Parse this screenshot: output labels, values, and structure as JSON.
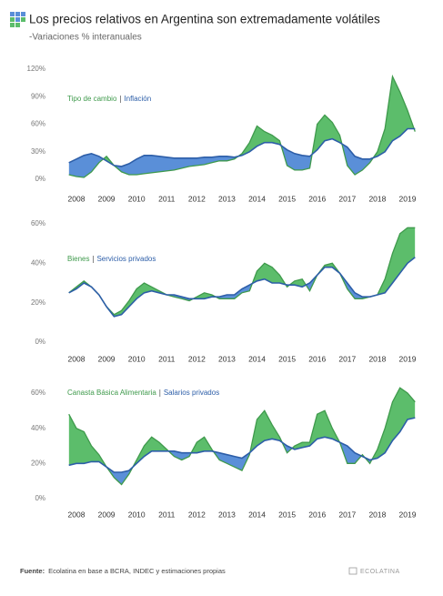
{
  "title": "Los precios relativos en Argentina son extremadamente volátiles",
  "subtitle": "-Variaciones % interanuales",
  "source_label": "Fuente:",
  "source_text": "Ecolatina en base a BCRA, INDEC y estimaciones propias",
  "logo": "ECOLATINA",
  "chart_data": [
    {
      "type": "line",
      "fill_between": true,
      "grid": false,
      "categories": [
        null,
        "2008",
        null,
        null,
        null,
        "2009",
        null,
        null,
        null,
        "2010",
        null,
        null,
        null,
        "2011",
        null,
        null,
        null,
        "2012",
        null,
        null,
        null,
        "2013",
        null,
        null,
        null,
        "2014",
        null,
        null,
        null,
        "2015",
        null,
        null,
        null,
        "2016",
        null,
        null,
        null,
        "2017",
        null,
        null,
        null,
        "2018",
        null,
        null,
        null,
        "2019",
        null
      ],
      "ylim": [
        0,
        120
      ],
      "yticks": [
        {
          "value": 0,
          "label": "0%"
        },
        {
          "value": 30,
          "label": "30%"
        },
        {
          "value": 60,
          "label": "60%"
        },
        {
          "value": 90,
          "label": "90%"
        },
        {
          "value": 120,
          "label": "120%"
        }
      ],
      "series": [
        {
          "name": "Tipo de cambio",
          "color": "#5cbd6b",
          "values": [
            5,
            3,
            2,
            8,
            18,
            25,
            15,
            8,
            5,
            5,
            6,
            7,
            8,
            9,
            10,
            12,
            14,
            15,
            16,
            18,
            20,
            20,
            22,
            28,
            40,
            58,
            52,
            48,
            42,
            15,
            10,
            10,
            12,
            60,
            70,
            62,
            48,
            15,
            5,
            10,
            18,
            30,
            55,
            112,
            95,
            75,
            52
          ]
        },
        {
          "name": "Inflación",
          "color": "#5a8fd8",
          "values": [
            18,
            22,
            26,
            28,
            25,
            20,
            15,
            14,
            17,
            22,
            26,
            26,
            25,
            24,
            23,
            23,
            23,
            23,
            24,
            24,
            25,
            25,
            24,
            26,
            30,
            36,
            40,
            40,
            38,
            32,
            28,
            26,
            25,
            32,
            42,
            44,
            40,
            35,
            25,
            22,
            22,
            25,
            30,
            42,
            47,
            55,
            55
          ]
        }
      ]
    },
    {
      "type": "line",
      "fill_between": true,
      "grid": false,
      "categories": [
        null,
        "2008",
        null,
        null,
        null,
        "2009",
        null,
        null,
        null,
        "2010",
        null,
        null,
        null,
        "2011",
        null,
        null,
        null,
        "2012",
        null,
        null,
        null,
        "2013",
        null,
        null,
        null,
        "2014",
        null,
        null,
        null,
        "2015",
        null,
        null,
        null,
        "2016",
        null,
        null,
        null,
        "2017",
        null,
        null,
        null,
        "2018",
        null,
        null,
        null,
        "2019",
        null
      ],
      "ylim": [
        0,
        60
      ],
      "yticks": [
        {
          "value": 0,
          "label": "0%"
        },
        {
          "value": 20,
          "label": "20%"
        },
        {
          "value": 40,
          "label": "40%"
        },
        {
          "value": 60,
          "label": "60%"
        }
      ],
      "series": [
        {
          "name": "Bienes",
          "color": "#5cbd6b",
          "values": [
            25,
            28,
            31,
            28,
            24,
            18,
            14,
            16,
            21,
            27,
            30,
            28,
            26,
            24,
            23,
            22,
            21,
            23,
            25,
            24,
            22,
            22,
            22,
            25,
            26,
            36,
            40,
            38,
            34,
            28,
            31,
            32,
            26,
            34,
            39,
            40,
            35,
            27,
            22,
            22,
            23,
            24,
            32,
            45,
            55,
            58,
            58
          ]
        },
        {
          "name": "Servicios privados",
          "color": "#5a8fd8",
          "values": [
            25,
            27,
            30,
            28,
            24,
            18,
            13,
            14,
            18,
            22,
            25,
            26,
            25,
            24,
            24,
            23,
            22,
            22,
            22,
            23,
            23,
            24,
            24,
            27,
            29,
            31,
            32,
            30,
            30,
            29,
            29,
            28,
            30,
            34,
            38,
            38,
            35,
            30,
            25,
            23,
            23,
            24,
            25,
            30,
            35,
            40,
            43
          ]
        }
      ]
    },
    {
      "type": "line",
      "fill_between": true,
      "grid": false,
      "categories": [
        null,
        "2008",
        null,
        null,
        null,
        "2009",
        null,
        null,
        null,
        "2010",
        null,
        null,
        null,
        "2011",
        null,
        null,
        null,
        "2012",
        null,
        null,
        null,
        "2013",
        null,
        null,
        null,
        "2014",
        null,
        null,
        null,
        "2015",
        null,
        null,
        null,
        "2016",
        null,
        null,
        null,
        "2017",
        null,
        null,
        null,
        "2018",
        null,
        null,
        null,
        "2019",
        null
      ],
      "ylim": [
        0,
        60
      ],
      "yticks": [
        {
          "value": 0,
          "label": "0%"
        },
        {
          "value": 20,
          "label": "20%"
        },
        {
          "value": 40,
          "label": "40%"
        },
        {
          "value": 60,
          "label": "60%"
        }
      ],
      "series": [
        {
          "name": "Canasta Básica Alimentaria",
          "color": "#5cbd6b",
          "values": [
            48,
            40,
            38,
            30,
            25,
            18,
            12,
            8,
            14,
            22,
            30,
            35,
            32,
            28,
            24,
            22,
            24,
            32,
            35,
            28,
            22,
            20,
            18,
            16,
            25,
            45,
            50,
            42,
            35,
            26,
            30,
            32,
            32,
            48,
            50,
            40,
            32,
            20,
            20,
            25,
            20,
            28,
            40,
            55,
            63,
            60,
            55
          ]
        },
        {
          "name": "Salarios privados",
          "color": "#5a8fd8",
          "values": [
            19,
            20,
            20,
            21,
            21,
            18,
            15,
            15,
            16,
            20,
            24,
            27,
            27,
            27,
            27,
            26,
            26,
            26,
            27,
            27,
            26,
            25,
            24,
            23,
            26,
            30,
            33,
            34,
            33,
            30,
            28,
            29,
            30,
            34,
            35,
            34,
            32,
            30,
            26,
            24,
            22,
            23,
            26,
            33,
            38,
            45,
            46
          ]
        }
      ]
    }
  ]
}
